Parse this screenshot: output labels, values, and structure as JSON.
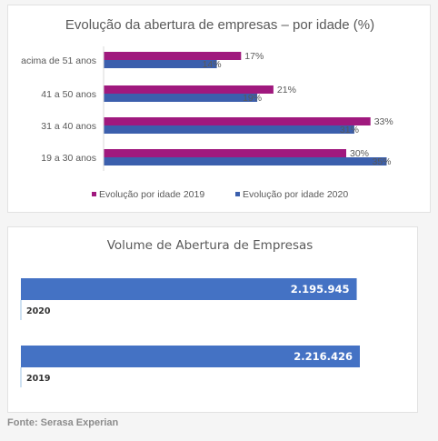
{
  "chart_data": [
    {
      "type": "bar",
      "orientation": "horizontal",
      "title": "Evolução da abertura de empresas – por idade (%)",
      "categories": [
        "acima de 51 anos",
        "41 a 50 anos",
        "31 a 40 anos",
        "19 a 30 anos"
      ],
      "series": [
        {
          "name": "Evolução por idade 2019",
          "values": [
            17,
            21,
            33,
            30
          ],
          "labels": [
            "17%",
            "21%",
            "33%",
            "30%"
          ],
          "color": "#a0197e"
        },
        {
          "name": "Evolução por idade 2020",
          "values": [
            14,
            19,
            31,
            35
          ],
          "labels": [
            "14%",
            "19%",
            "31%",
            "35%"
          ],
          "color": "#3b5fad"
        }
      ],
      "xlim": [
        0,
        35
      ],
      "grid": false,
      "legend": "bottom"
    },
    {
      "type": "bar",
      "orientation": "horizontal",
      "title": "Volume de Abertura de Empresas",
      "categories": [
        "2020",
        "2019"
      ],
      "values": [
        2195945,
        2216426
      ],
      "value_labels": [
        "2.195.945",
        "2.216.426"
      ],
      "color": "#4472c4",
      "xlim": [
        0,
        2216426
      ],
      "grid": false
    }
  ],
  "source": "Fonte: Serasa Experian"
}
